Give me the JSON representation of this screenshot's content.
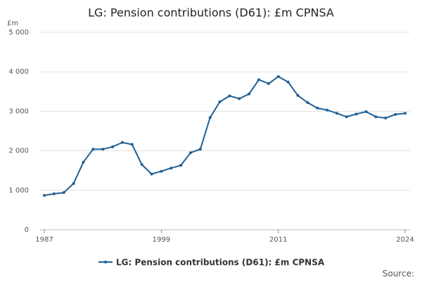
{
  "chart_data": {
    "type": "line",
    "title": "LG: Pension contributions (D61): £m CPNSA",
    "y_unit": "£m",
    "source": "Source:",
    "x": [
      1987,
      1988,
      1989,
      1990,
      1991,
      1992,
      1993,
      1994,
      1995,
      1996,
      1997,
      1998,
      1999,
      2000,
      2001,
      2002,
      2003,
      2004,
      2005,
      2006,
      2007,
      2008,
      2009,
      2010,
      2011,
      2012,
      2013,
      2014,
      2015,
      2016,
      2017,
      2018,
      2019,
      2020,
      2021,
      2022,
      2023,
      2024
    ],
    "series": [
      {
        "name": "LG: Pension contributions (D61): £m CPNSA",
        "color": "#206095",
        "values": [
          870,
          910,
          940,
          1170,
          1710,
          2040,
          2040,
          2100,
          2210,
          2160,
          1650,
          1410,
          1480,
          1560,
          1630,
          1950,
          2040,
          2840,
          3240,
          3390,
          3320,
          3440,
          3800,
          3700,
          3880,
          3740,
          3400,
          3220,
          3080,
          3030,
          2950,
          2860,
          2930,
          2990,
          2860,
          2830,
          2920,
          2950
        ]
      }
    ],
    "xlim": [
      1987,
      2024
    ],
    "xticks": [
      1987,
      1999,
      2011,
      2024
    ],
    "ylim": [
      0,
      5000
    ],
    "yticks": [
      0,
      {
        "value": 1000,
        "label": "1 000"
      },
      {
        "value": 2000,
        "label": "2 000"
      },
      {
        "value": 3000,
        "label": "3 000"
      },
      {
        "value": 4000,
        "label": "4 000"
      },
      {
        "value": 5000,
        "label": "5 000"
      }
    ],
    "grid": true
  }
}
